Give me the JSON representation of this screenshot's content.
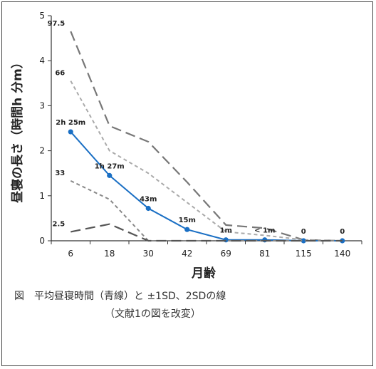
{
  "chart_data": {
    "type": "line",
    "xlabel": "月齢",
    "ylabel": "昼寝の長さ（時間h 分m）",
    "categories": [
      "6",
      "18",
      "30",
      "42",
      "69",
      "81",
      "115",
      "140"
    ],
    "ylim": [
      0,
      5
    ],
    "yticks": [
      "0",
      "1",
      "2",
      "3",
      "4",
      "5"
    ],
    "grid": false,
    "series": [
      {
        "name": "97.5",
        "style": "long-dash",
        "color": "#777777",
        "values": [
          4.65,
          2.55,
          2.2,
          1.3,
          0.35,
          0.28,
          0.02,
          0.0
        ]
      },
      {
        "name": "66",
        "style": "short-dash",
        "color": "#aaaaaa",
        "values": [
          3.55,
          2.0,
          1.5,
          0.85,
          0.2,
          0.12,
          0.02,
          0.0
        ]
      },
      {
        "name": "平均",
        "style": "solid",
        "color": "#1a6fc4",
        "values": [
          2.42,
          1.45,
          0.72,
          0.25,
          0.02,
          0.02,
          0.0,
          0.0
        ]
      },
      {
        "name": "33",
        "style": "short-dash",
        "color": "#888888",
        "values": [
          1.33,
          0.92,
          0.0,
          0.0,
          0.0,
          0.0,
          0.0,
          0.0
        ]
      },
      {
        "name": "2.5",
        "style": "long-dash",
        "color": "#555555",
        "values": [
          0.2,
          0.37,
          0.0,
          0.0,
          0.0,
          0.0,
          0.0,
          0.0
        ]
      }
    ],
    "mean_labels": [
      "2h 25m",
      "1h 27m",
      "43m",
      "15m",
      "1m",
      "< 1m",
      "0",
      "0"
    ]
  },
  "caption": {
    "line1": "図　平均昼寝時間（青線）と ±1SD、2SDの線",
    "line2": "（文献1の図を改変）"
  }
}
